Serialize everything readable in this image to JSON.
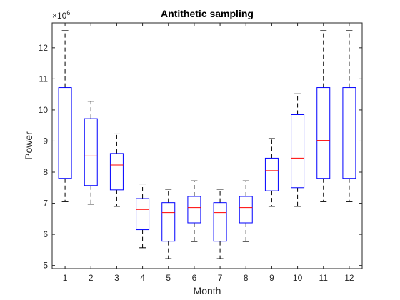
{
  "chart_data": {
    "type": "boxplot",
    "title": "Antithetic sampling",
    "xlabel": "Month",
    "ylabel": "Power",
    "y_exponent_label": "×10",
    "y_exponent_power": "6",
    "xlim": [
      0.5,
      12.5
    ],
    "ylim": [
      4.9,
      12.8
    ],
    "y_ticks": [
      5,
      6,
      7,
      8,
      9,
      10,
      11,
      12
    ],
    "y_tick_labels": [
      "5",
      "6",
      "7",
      "8",
      "9",
      "10",
      "11",
      "12"
    ],
    "categories": [
      "1",
      "2",
      "3",
      "4",
      "5",
      "6",
      "7",
      "8",
      "9",
      "10",
      "11",
      "12"
    ],
    "box_color": "#0000ff",
    "median_color": "#ff0000",
    "whisker_color": "#000000",
    "boxes": [
      {
        "month": "1",
        "whisker_low": 7.05,
        "q1": 7.8,
        "median": 9.0,
        "q3": 10.72,
        "whisker_high": 12.55
      },
      {
        "month": "2",
        "whisker_low": 6.97,
        "q1": 7.57,
        "median": 8.52,
        "q3": 9.72,
        "whisker_high": 10.28
      },
      {
        "month": "3",
        "whisker_low": 6.9,
        "q1": 7.43,
        "median": 8.23,
        "q3": 8.6,
        "whisker_high": 9.23
      },
      {
        "month": "4",
        "whisker_low": 5.57,
        "q1": 6.15,
        "median": 6.8,
        "q3": 7.15,
        "whisker_high": 7.62
      },
      {
        "month": "5",
        "whisker_low": 5.22,
        "q1": 5.78,
        "median": 6.7,
        "q3": 7.02,
        "whisker_high": 7.45
      },
      {
        "month": "6",
        "whisker_low": 5.77,
        "q1": 6.37,
        "median": 6.86,
        "q3": 7.22,
        "whisker_high": 7.72
      },
      {
        "month": "7",
        "whisker_low": 5.22,
        "q1": 5.78,
        "median": 6.7,
        "q3": 7.02,
        "whisker_high": 7.45
      },
      {
        "month": "8",
        "whisker_low": 5.77,
        "q1": 6.37,
        "median": 6.86,
        "q3": 7.22,
        "whisker_high": 7.72
      },
      {
        "month": "9",
        "whisker_low": 6.9,
        "q1": 7.4,
        "median": 8.05,
        "q3": 8.45,
        "whisker_high": 9.08
      },
      {
        "month": "10",
        "whisker_low": 6.9,
        "q1": 7.5,
        "median": 8.45,
        "q3": 9.85,
        "whisker_high": 10.52
      },
      {
        "month": "11",
        "whisker_low": 7.05,
        "q1": 7.8,
        "median": 9.02,
        "q3": 10.72,
        "whisker_high": 12.55
      },
      {
        "month": "12",
        "whisker_low": 7.05,
        "q1": 7.8,
        "median": 9.0,
        "q3": 10.72,
        "whisker_high": 12.55
      }
    ]
  }
}
